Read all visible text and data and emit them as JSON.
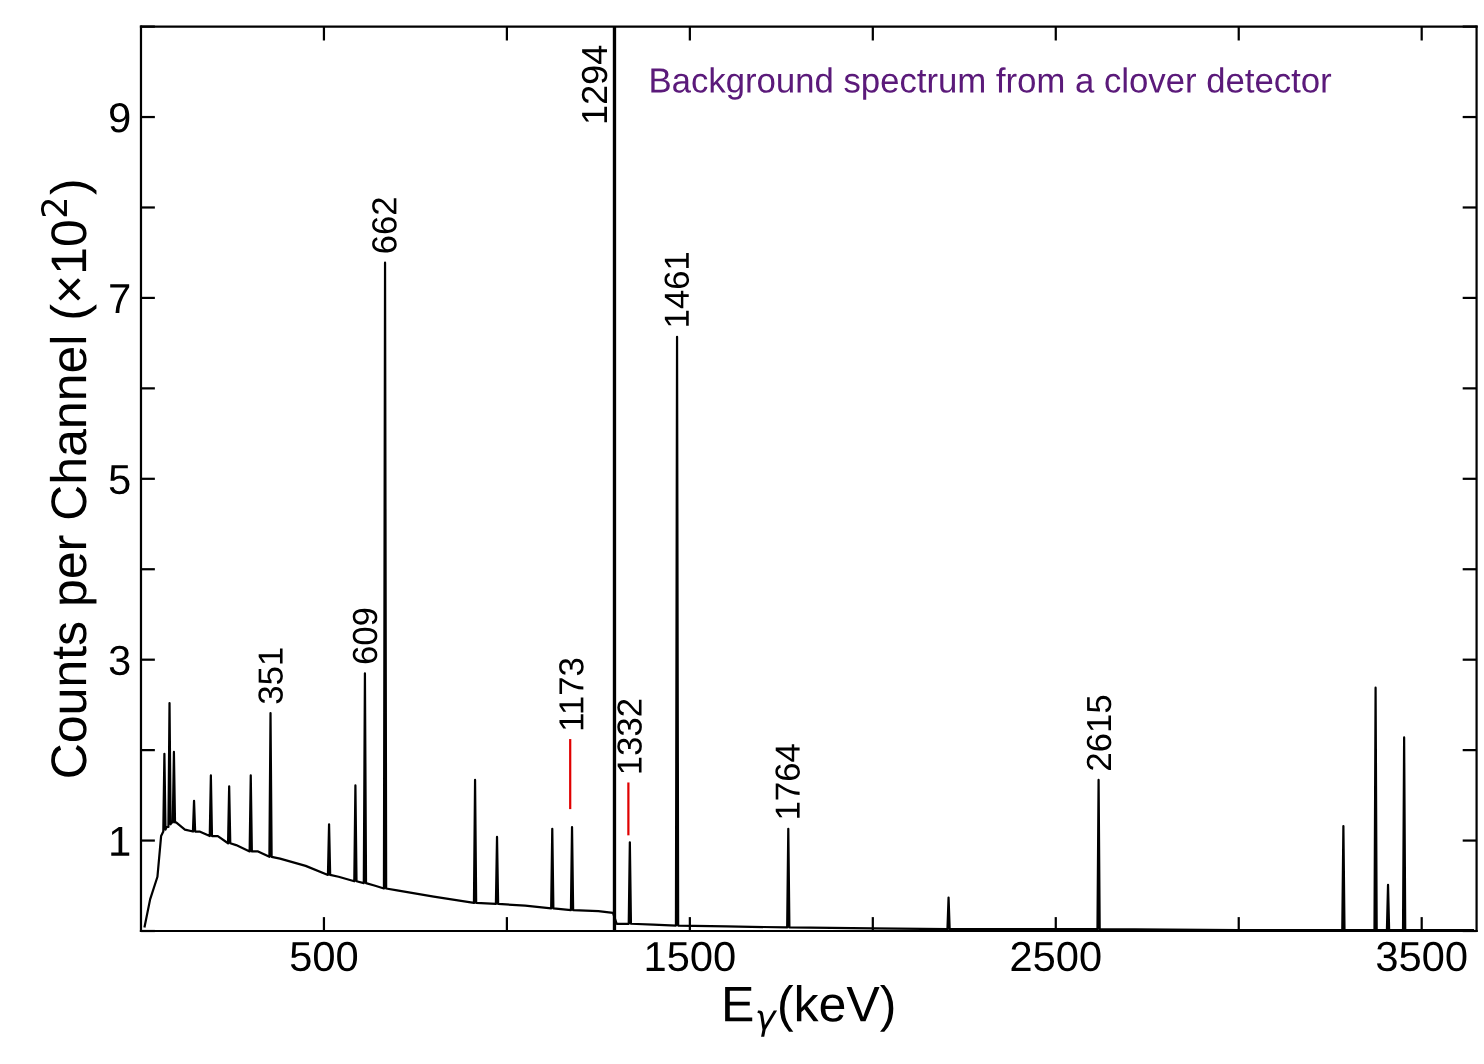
{
  "chart_data": {
    "type": "line",
    "xlabel": "E$_{γ}$(keV)",
    "ylabel": "Counts per Channel (×10$^{2}$)",
    "xlim": [
      0,
      3650
    ],
    "ylim": [
      0,
      10
    ],
    "xticks": [
      500,
      {
        "value": 1000,
        "label": null
      },
      1500,
      {
        "value": 2000,
        "label": null
      },
      2500,
      {
        "value": 3000,
        "label": null
      },
      3500
    ],
    "yticks": [
      {
        "value": 0,
        "label": null
      },
      1,
      {
        "value": 2,
        "label": null
      },
      3,
      {
        "value": 4,
        "label": null
      },
      5,
      {
        "value": 6,
        "label": null
      },
      7,
      {
        "value": 8,
        "label": null
      },
      9,
      {
        "value": 10,
        "label": null
      }
    ],
    "grid": false,
    "legend": false,
    "series": [
      {
        "color": "#000000",
        "x": [
          10,
          25,
          45,
          55,
          61,
          64,
          67,
          70,
          75,
          78,
          81,
          84,
          87,
          90,
          93,
          96,
          120,
          142,
          145,
          148,
          160,
          188,
          191,
          194,
          210,
          238,
          241,
          244,
          260,
          297,
          300,
          303,
          320,
          351,
          354,
          357,
          380,
          450,
          511,
          514,
          517,
          540,
          583,
          586,
          589,
          609,
          612,
          615,
          640,
          664,
          667,
          670,
          700,
          800,
          910,
          913,
          916,
          970,
          973,
          976,
          1050,
          1121,
          1124,
          1127,
          1175,
          1178,
          1181,
          1250,
          1290,
          1300,
          1333,
          1336,
          1339,
          1400,
          1462,
          1465,
          1468,
          1600,
          1766,
          1769,
          1772,
          2000,
          2204,
          2207,
          2210,
          2400,
          2614,
          2617,
          2620,
          3000,
          3283,
          3286,
          3289,
          3371,
          3374,
          3377,
          3405,
          3408,
          3411,
          3449,
          3452,
          3455,
          3640
        ],
        "values": [
          0.05,
          0.35,
          0.6,
          1.05,
          1.1,
          1.96,
          1.12,
          1.15,
          1.15,
          2.52,
          1.18,
          1.2,
          1.2,
          1.98,
          1.2,
          1.2,
          1.12,
          1.1,
          1.44,
          1.1,
          1.1,
          1.05,
          1.72,
          1.05,
          1.05,
          0.97,
          1.6,
          0.97,
          0.95,
          0.88,
          1.72,
          0.88,
          0.88,
          0.82,
          2.41,
          0.82,
          0.8,
          0.72,
          0.62,
          1.18,
          0.62,
          0.6,
          0.55,
          1.61,
          0.55,
          0.53,
          2.85,
          0.53,
          0.5,
          0.47,
          7.39,
          0.47,
          0.45,
          0.38,
          0.31,
          1.67,
          0.31,
          0.3,
          1.04,
          0.3,
          0.28,
          0.25,
          1.13,
          0.25,
          0.23,
          1.15,
          0.23,
          0.22,
          0.2,
          0.08,
          0.08,
          0.98,
          0.08,
          0.07,
          0.06,
          6.57,
          0.06,
          0.05,
          0.04,
          1.13,
          0.04,
          0.03,
          0.02,
          0.37,
          0.02,
          0.02,
          0.02,
          1.67,
          0.02,
          0.01,
          0.01,
          1.16,
          0.01,
          0.01,
          2.69,
          0.01,
          0.01,
          0.51,
          0.01,
          0.01,
          2.14,
          0.01,
          0.01
        ]
      },
      {
        "color": "#e00000",
        "x": [
          1173,
          1173
        ],
        "values": [
          1.36,
          2.11
        ]
      },
      {
        "color": "#e00000",
        "x": [
          1332,
          1332
        ],
        "values": [
          1.07,
          1.63
        ]
      }
    ],
    "ref_lines": [
      {
        "axis": "x",
        "value": 1294,
        "label": "1294",
        "color": "#000000"
      }
    ],
    "annotations": [
      {
        "text": "351",
        "x": 351,
        "y": 2.41
      },
      {
        "text": "609",
        "x": 609,
        "y": 2.85
      },
      {
        "text": "662",
        "x": 662,
        "y": 7.39
      },
      {
        "text": "1173",
        "x": 1173,
        "y": 2.11
      },
      {
        "text": "1332",
        "x": 1332,
        "y": 1.63
      },
      {
        "text": "1461",
        "x": 1461,
        "y": 6.57
      },
      {
        "text": "1764",
        "x": 1764,
        "y": 1.13
      },
      {
        "text": "2615",
        "x": 2615,
        "y": 1.67
      },
      "Background spectrum from a clover detector"
    ]
  }
}
